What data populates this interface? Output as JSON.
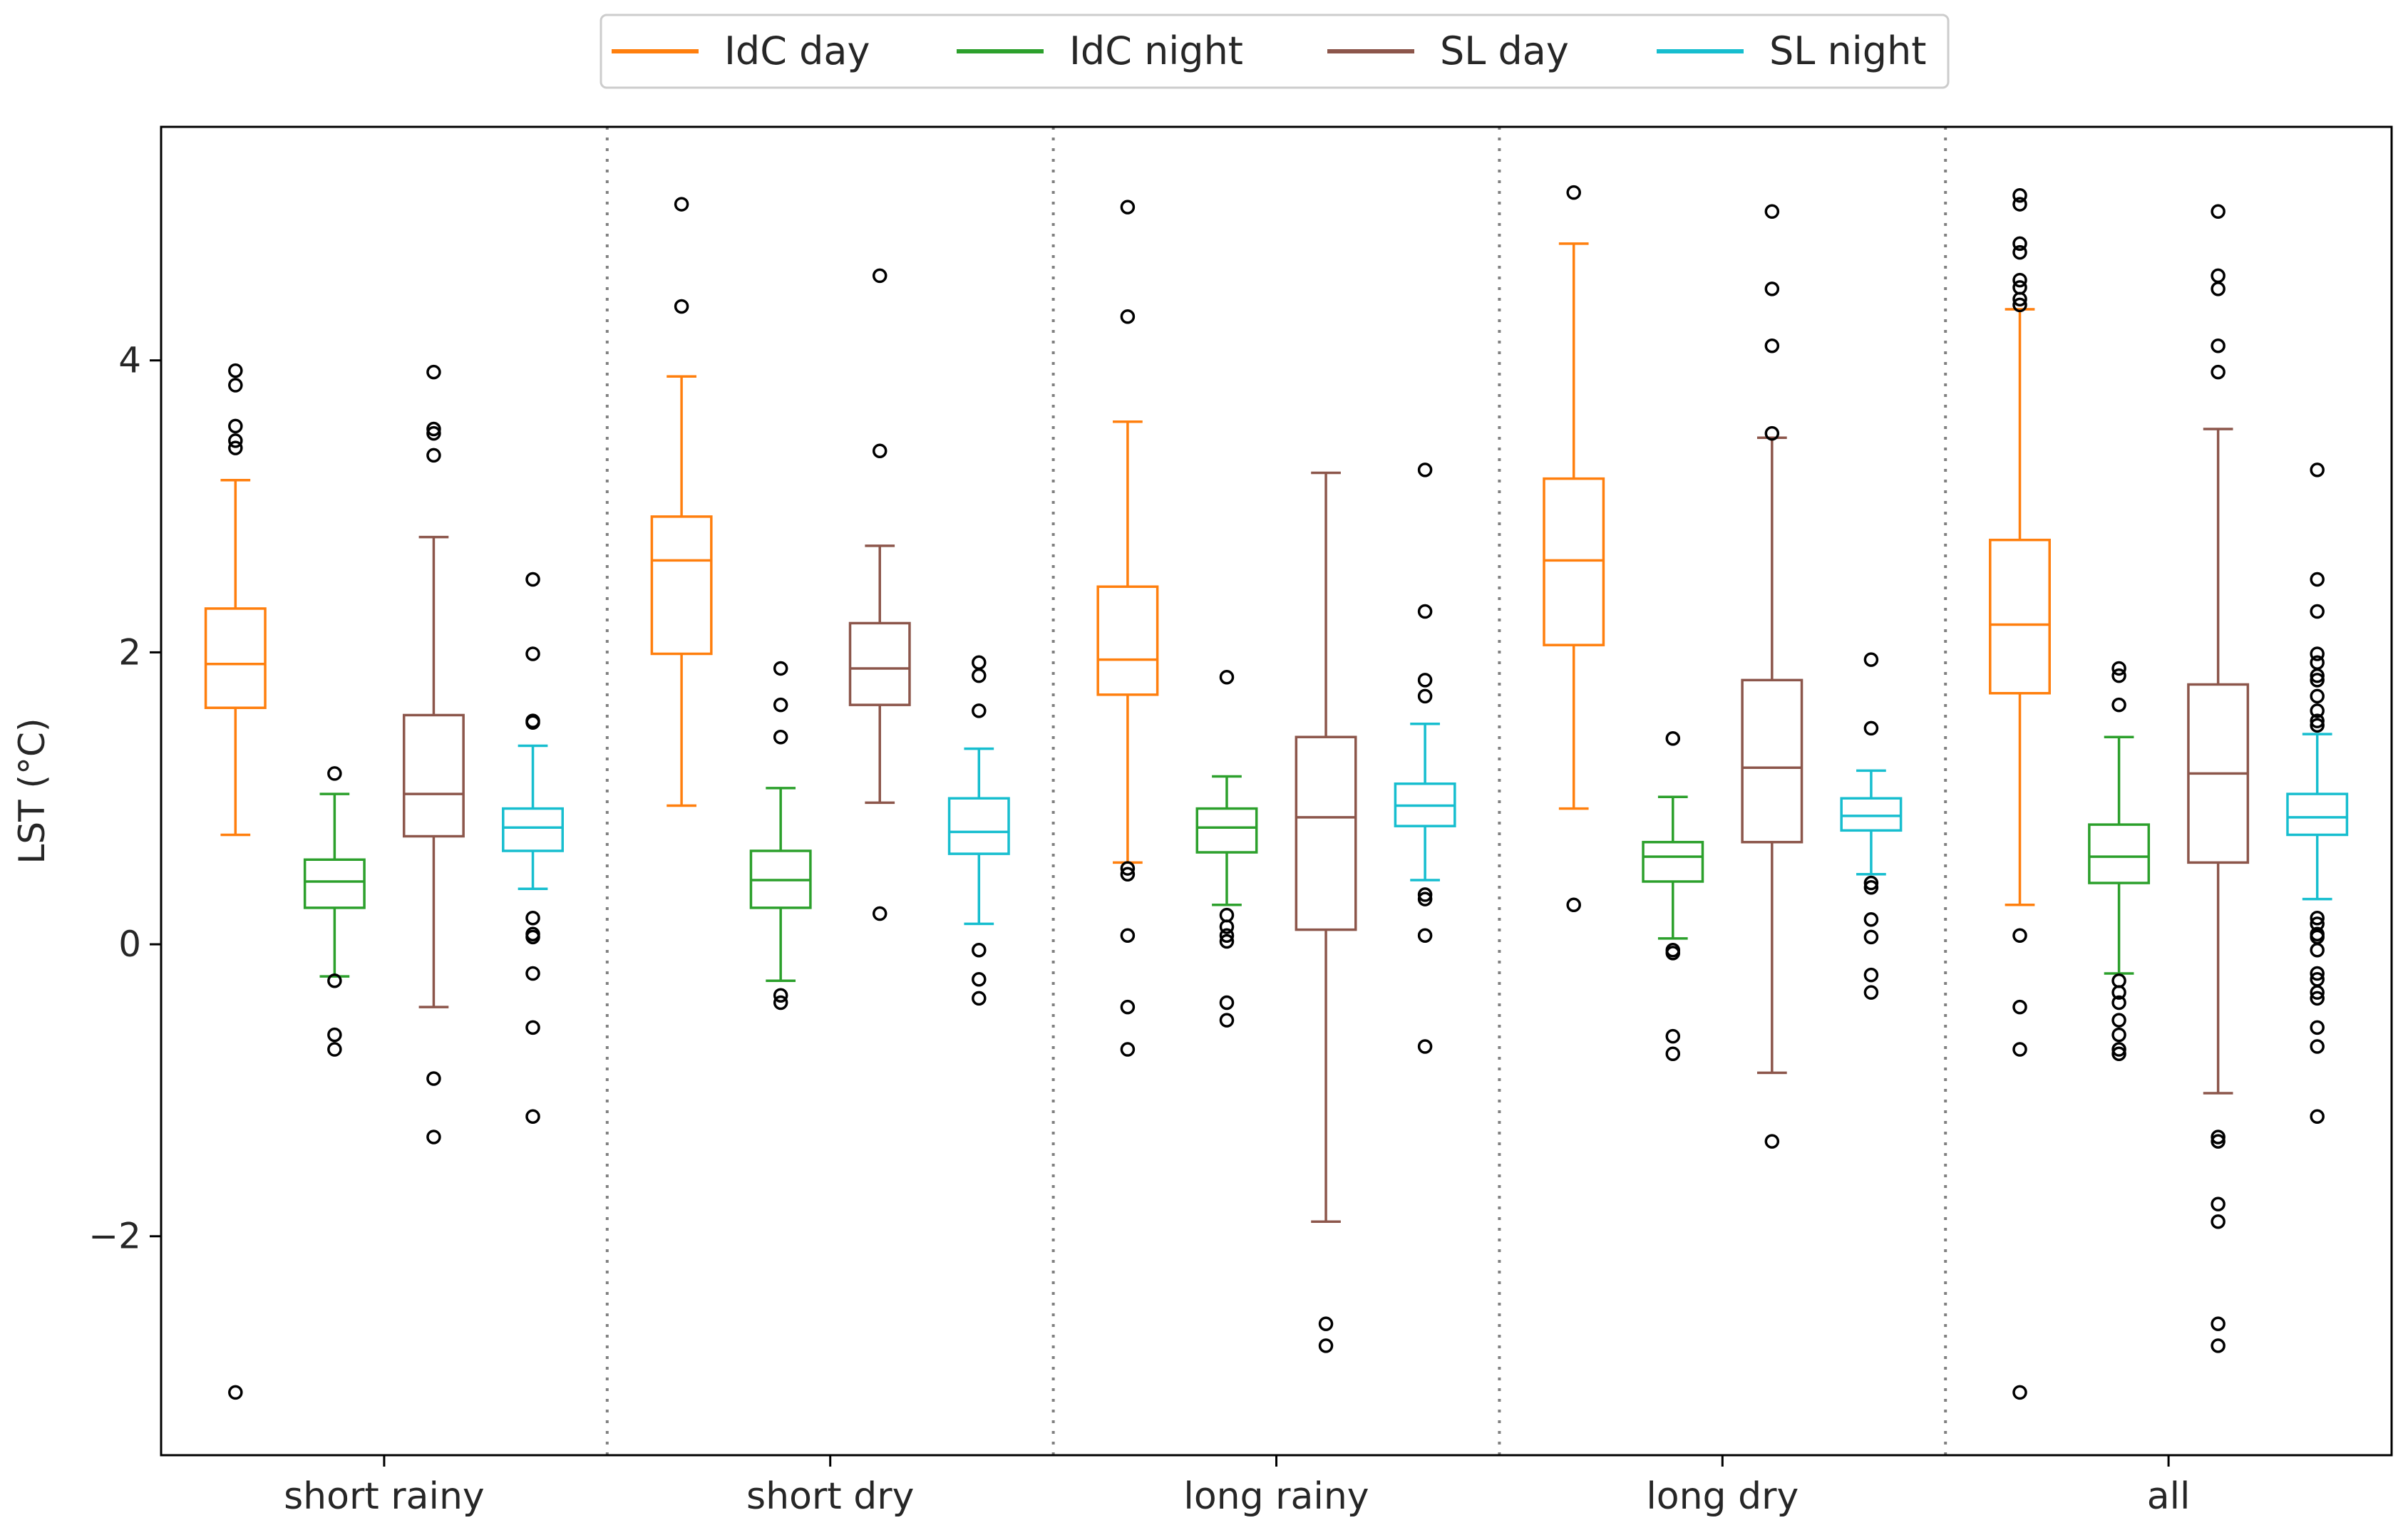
{
  "chart_data": {
    "type": "box",
    "title": "",
    "xlabel": "",
    "ylabel": "LST (°C)",
    "ylim": [
      -3.5,
      5.6
    ],
    "yticks": [
      -2,
      0,
      2,
      4
    ],
    "ytick_labels": [
      "−2",
      "0",
      "2",
      "4"
    ],
    "categories": [
      "short rainy",
      "short dry",
      "long rainy",
      "long dry",
      "all"
    ],
    "legend_position": "top-center",
    "series": [
      {
        "name": "IdC day",
        "color": "#ff7f0e",
        "boxes": [
          {
            "whislo": 0.75,
            "q1": 1.62,
            "med": 1.92,
            "q3": 2.3,
            "whishi": 3.18,
            "fliers": [
              3.93,
              3.83,
              3.55,
              3.45,
              3.4,
              -3.07
            ]
          },
          {
            "whislo": 0.95,
            "q1": 1.99,
            "med": 2.63,
            "q3": 2.93,
            "whishi": 3.89,
            "fliers": [
              5.07,
              4.37
            ]
          },
          {
            "whislo": 0.56,
            "q1": 1.71,
            "med": 1.95,
            "q3": 2.45,
            "whishi": 3.58,
            "fliers": [
              5.05,
              4.3,
              0.52,
              0.48,
              0.06,
              -0.43,
              -0.72
            ]
          },
          {
            "whislo": 0.93,
            "q1": 2.05,
            "med": 2.63,
            "q3": 3.19,
            "whishi": 4.8,
            "fliers": [
              5.15,
              0.27
            ]
          },
          {
            "whislo": 0.27,
            "q1": 1.72,
            "med": 2.19,
            "q3": 2.77,
            "whishi": 4.35,
            "fliers": [
              5.13,
              5.07,
              4.8,
              4.74,
              4.55,
              4.5,
              4.42,
              4.38,
              0.06,
              -0.43,
              -0.72,
              -3.07
            ]
          }
        ]
      },
      {
        "name": "IdC night",
        "color": "#2ca02c",
        "boxes": [
          {
            "whislo": -0.22,
            "q1": 0.25,
            "med": 0.43,
            "q3": 0.58,
            "whishi": 1.03,
            "fliers": [
              1.17,
              -0.25,
              -0.62,
              -0.72
            ]
          },
          {
            "whislo": -0.25,
            "q1": 0.25,
            "med": 0.44,
            "q3": 0.64,
            "whishi": 1.07,
            "fliers": [
              1.89,
              1.64,
              1.42,
              -0.35,
              -0.4
            ]
          },
          {
            "whislo": 0.27,
            "q1": 0.63,
            "med": 0.8,
            "q3": 0.93,
            "whishi": 1.15,
            "fliers": [
              1.83,
              0.2,
              0.12,
              0.06,
              0.02,
              -0.4,
              -0.52
            ]
          },
          {
            "whislo": 0.04,
            "q1": 0.43,
            "med": 0.6,
            "q3": 0.7,
            "whishi": 1.01,
            "fliers": [
              1.41,
              -0.04,
              -0.06,
              -0.63,
              -0.75
            ]
          },
          {
            "whislo": -0.2,
            "q1": 0.42,
            "med": 0.6,
            "q3": 0.82,
            "whishi": 1.42,
            "fliers": [
              1.89,
              1.84,
              1.64,
              -0.25,
              -0.33,
              -0.4,
              -0.52,
              -0.62,
              -0.72,
              -0.75
            ]
          }
        ]
      },
      {
        "name": "SL day",
        "color": "#8c564b",
        "boxes": [
          {
            "whislo": -0.43,
            "q1": 0.74,
            "med": 1.03,
            "q3": 1.57,
            "whishi": 2.79,
            "fliers": [
              3.92,
              3.53,
              3.5,
              3.35,
              -0.92,
              -1.32
            ]
          },
          {
            "whislo": 0.97,
            "q1": 1.64,
            "med": 1.89,
            "q3": 2.2,
            "whishi": 2.73,
            "fliers": [
              4.58,
              3.38,
              0.21
            ]
          },
          {
            "whislo": -1.9,
            "q1": 0.1,
            "med": 0.87,
            "q3": 1.42,
            "whishi": 3.23,
            "fliers": [
              -2.6,
              -2.75
            ]
          },
          {
            "whislo": -0.88,
            "q1": 0.7,
            "med": 1.21,
            "q3": 1.81,
            "whishi": 3.47,
            "fliers": [
              5.02,
              4.49,
              4.1,
              3.5,
              -1.35
            ]
          },
          {
            "whislo": -1.02,
            "q1": 0.56,
            "med": 1.17,
            "q3": 1.78,
            "whishi": 3.53,
            "fliers": [
              5.02,
              4.58,
              4.49,
              4.1,
              3.92,
              -1.32,
              -1.35,
              -1.78,
              -1.9,
              -2.6,
              -2.75
            ]
          }
        ]
      },
      {
        "name": "SL night",
        "color": "#17becf",
        "boxes": [
          {
            "whislo": 0.38,
            "q1": 0.64,
            "med": 0.8,
            "q3": 0.93,
            "whishi": 1.36,
            "fliers": [
              2.5,
              1.99,
              1.53,
              1.52,
              0.18,
              0.07,
              0.05,
              -0.2,
              -0.57,
              -1.18
            ]
          },
          {
            "whislo": 0.14,
            "q1": 0.62,
            "med": 0.77,
            "q3": 1.0,
            "whishi": 1.34,
            "fliers": [
              1.93,
              1.84,
              1.6,
              -0.04,
              -0.24,
              -0.37
            ]
          },
          {
            "whislo": 0.44,
            "q1": 0.81,
            "med": 0.95,
            "q3": 1.1,
            "whishi": 1.51,
            "fliers": [
              3.25,
              2.28,
              1.81,
              1.7,
              0.34,
              0.31,
              0.06,
              -0.7
            ]
          },
          {
            "whislo": 0.48,
            "q1": 0.78,
            "med": 0.88,
            "q3": 1.0,
            "whishi": 1.19,
            "fliers": [
              1.95,
              1.48,
              0.42,
              0.39,
              0.17,
              0.05,
              -0.21,
              -0.33
            ]
          },
          {
            "whislo": 0.31,
            "q1": 0.75,
            "med": 0.87,
            "q3": 1.03,
            "whishi": 1.44,
            "fliers": [
              3.25,
              2.5,
              2.28,
              1.99,
              1.93,
              1.84,
              1.81,
              1.7,
              1.6,
              1.53,
              1.5,
              0.18,
              0.14,
              0.07,
              0.05,
              -0.04,
              -0.2,
              -0.24,
              -0.33,
              -0.37,
              -0.57,
              -0.7,
              -1.18
            ]
          }
        ]
      }
    ]
  }
}
